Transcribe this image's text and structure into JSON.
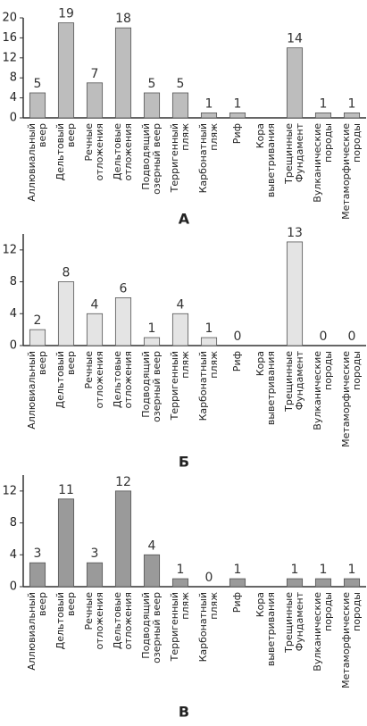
{
  "chart_data": [
    {
      "type": "bar",
      "title": "А",
      "color": "#bdbdbd",
      "categories": [
        [
          "Аллювиальный",
          "веер"
        ],
        [
          "Дельтовый",
          "веер"
        ],
        [
          "Речные",
          "отложения"
        ],
        [
          "Дельтовые",
          "отложения"
        ],
        [
          "Подводящий",
          "озерный веер"
        ],
        [
          "Терригенный",
          "пляж"
        ],
        [
          "Карбонатный",
          "пляж"
        ],
        [
          "Риф"
        ],
        [
          "Кора",
          "выветривания"
        ],
        [
          "Трещинные",
          "Фундамент"
        ],
        [
          "Вулканические",
          "породы"
        ],
        [
          "Метаморфические",
          "породы"
        ]
      ],
      "values": [
        5,
        19,
        7,
        18,
        5,
        5,
        1,
        1,
        null,
        14,
        1,
        1
      ],
      "ylim": [
        0,
        20
      ],
      "yticks": [
        0,
        4,
        8,
        12,
        16,
        20
      ]
    },
    {
      "type": "bar",
      "title": "Б",
      "color": "#e4e4e4",
      "categories": [
        [
          "Аллювиальный",
          "веер"
        ],
        [
          "Дельтовый",
          "веер"
        ],
        [
          "Речные",
          "отложения"
        ],
        [
          "Дельтовые",
          "отложения"
        ],
        [
          "Подводящий",
          "озерный веер"
        ],
        [
          "Терригенный",
          "пляж"
        ],
        [
          "Карбонатный",
          "пляж"
        ],
        [
          "Риф"
        ],
        [
          "Кора",
          "выветривания"
        ],
        [
          "Трещинные",
          "Фундамент"
        ],
        [
          "Вулканические",
          "породы"
        ],
        [
          "Метаморфические",
          "породы"
        ]
      ],
      "values": [
        2,
        8,
        4,
        6,
        1,
        4,
        1,
        0,
        null,
        13,
        0,
        0
      ],
      "ylim": [
        0,
        14
      ],
      "yticks": [
        0,
        4,
        8,
        12
      ]
    },
    {
      "type": "bar",
      "title": "В",
      "color": "#9a9a9a",
      "categories": [
        [
          "Аллювиальный",
          "веер"
        ],
        [
          "Дельтовый",
          "веер"
        ],
        [
          "Речные",
          "отложения"
        ],
        [
          "Дельтовые",
          "отложения"
        ],
        [
          "Подводящий",
          "озерный веер"
        ],
        [
          "Терригенный",
          "пляж"
        ],
        [
          "Карбонатный",
          "пляж"
        ],
        [
          "Риф"
        ],
        [
          "Кора",
          "выветривания"
        ],
        [
          "Трещинные",
          "Фундамент"
        ],
        [
          "Вулканические",
          "породы"
        ],
        [
          "Метаморфические",
          "породы"
        ]
      ],
      "values": [
        3,
        11,
        3,
        12,
        4,
        1,
        0,
        1,
        null,
        1,
        1,
        1
      ],
      "ylim": [
        0,
        14
      ],
      "yticks": [
        0,
        4,
        8,
        12
      ]
    }
  ]
}
